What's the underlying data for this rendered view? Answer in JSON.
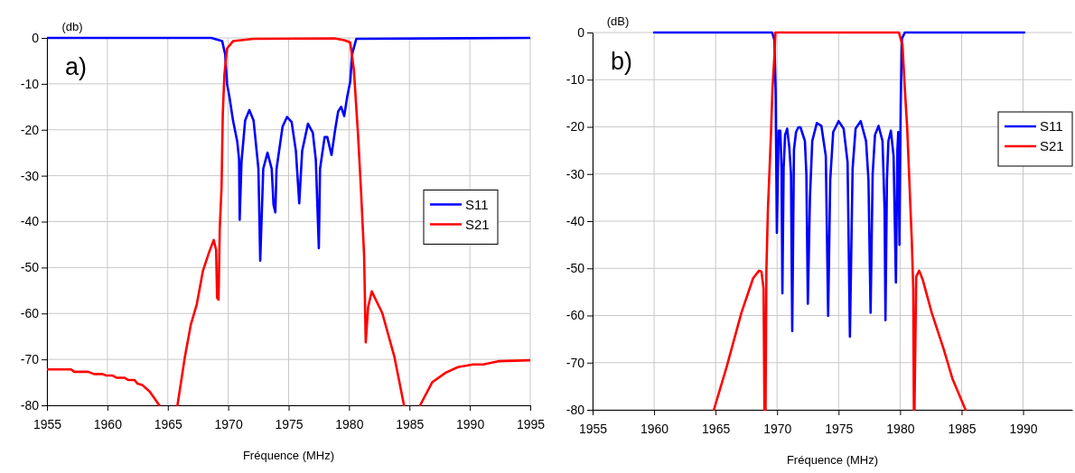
{
  "chart_data": [
    {
      "type": "line",
      "title": "a)",
      "xlabel": "Fréquence (MHz)",
      "ylabel": "(db)",
      "xlim": [
        1955,
        1995
      ],
      "ylim": [
        -80,
        0
      ],
      "xticks": [
        1955,
        1960,
        1965,
        1970,
        1975,
        1980,
        1985,
        1990,
        1995
      ],
      "yticks": [
        -80,
        -70,
        -60,
        -50,
        -40,
        -30,
        -20,
        -10,
        0
      ],
      "grid": true,
      "legend": "right",
      "line_style": "solid",
      "marker": "none",
      "series": [
        {
          "name": "S11",
          "color": "#0000ff",
          "x": [
            1955,
            1968.6,
            1969.5,
            1969.75,
            1969.9,
            1970.1,
            1970.4,
            1970.75,
            1970.9,
            1970.95,
            1971.1,
            1971.4,
            1971.75,
            1972.1,
            1972.5,
            1972.65,
            1972.9,
            1973.25,
            1973.6,
            1973.75,
            1973.9,
            1974.0,
            1974.5,
            1974.87,
            1975.25,
            1975.6,
            1975.88,
            1976.12,
            1976.6,
            1977.0,
            1977.25,
            1977.5,
            1977.6,
            1977.98,
            1978.2,
            1978.55,
            1978.85,
            1979.1,
            1979.35,
            1979.6,
            1979.85,
            1980.1,
            1980.25,
            1980.6,
            1995
          ],
          "values": [
            0,
            0,
            -0.7,
            -3.6,
            -10,
            -12.8,
            -18,
            -22.6,
            -26.5,
            -39.6,
            -27,
            -18,
            -15.7,
            -18,
            -28.5,
            -48.5,
            -28.5,
            -25,
            -28.5,
            -36.3,
            -38,
            -28.5,
            -19.3,
            -17.2,
            -18.3,
            -24.6,
            -36,
            -24.6,
            -18.7,
            -20.6,
            -26.5,
            -45.8,
            -28.5,
            -21.6,
            -21.6,
            -25.5,
            -20,
            -16,
            -15,
            -17,
            -12.8,
            -9.5,
            -3.6,
            -0.2,
            0
          ]
        },
        {
          "name": "S21",
          "color": "#ff0000",
          "x": [
            1955,
            1957,
            1957.25,
            1958.4,
            1958.9,
            1959.6,
            1959.9,
            1960.4,
            1960.75,
            1961.4,
            1961.75,
            1962.25,
            1962.5,
            1962.9,
            1963.5,
            1964.3,
            1965,
            1965.8,
            1966.4,
            1966.9,
            1967.4,
            1967.9,
            1968.4,
            1968.8,
            1969.0,
            1969.08,
            1969.2,
            1969.3,
            1969.45,
            1969.55,
            1969.68,
            1969.9,
            1970.4,
            1972.1,
            1978.8,
            1979.6,
            1980.1,
            1980.4,
            1980.75,
            1981.0,
            1981.25,
            1981.38,
            1981.58,
            1981.88,
            1982.75,
            1983.75,
            1984.55,
            1985.2,
            1985.88,
            1986.88,
            1988,
            1989,
            1990.25,
            1991.1,
            1992.35,
            1995
          ],
          "values": [
            -72.2,
            -72.2,
            -72.7,
            -72.7,
            -73.2,
            -73.2,
            -73.5,
            -73.5,
            -74,
            -74,
            -74.5,
            -74.5,
            -75.3,
            -75.6,
            -77,
            -80,
            null,
            -80,
            -69.7,
            -62.5,
            -58,
            -50.8,
            -46.8,
            -44,
            -46.2,
            -56.6,
            -57,
            -41.6,
            -32.4,
            -16.7,
            -8.2,
            -2.3,
            -0.7,
            -0.2,
            -0.1,
            -0.5,
            -1,
            -6.9,
            -21.3,
            -33.7,
            -47.5,
            -66.3,
            -58.6,
            -55.2,
            -59.9,
            -69.4,
            -80,
            null,
            -80,
            -75,
            -72.9,
            -71.7,
            -71.1,
            -71.1,
            -70.4,
            -70.2
          ]
        }
      ]
    },
    {
      "type": "line",
      "title": "b)",
      "xlabel": "Fréquence (MHz)",
      "ylabel": "(dB)",
      "xlim": [
        1955,
        1994
      ],
      "ylim": [
        -80,
        0
      ],
      "xticks": [
        1955,
        1960,
        1965,
        1970,
        1975,
        1980,
        1985,
        1990
      ],
      "yticks": [
        -80,
        -70,
        -60,
        -50,
        -40,
        -30,
        -20,
        -10,
        0
      ],
      "grid": true,
      "legend": "top right",
      "line_style": "solid",
      "marker": "none",
      "series": [
        {
          "name": "S11",
          "color": "#0000ff",
          "x": [
            1960,
            1969.6,
            1969.78,
            1969.88,
            1969.98,
            1970.12,
            1970.26,
            1970.36,
            1970.43,
            1970.53,
            1970.65,
            1970.82,
            1970.99,
            1971.13,
            1971.23,
            1971.37,
            1971.54,
            1971.73,
            1971.9,
            1972.26,
            1972.38,
            1972.5,
            1972.67,
            1972.86,
            1973.23,
            1973.6,
            1973.96,
            1974.15,
            1974.32,
            1974.56,
            1975,
            1975.41,
            1975.73,
            1975.92,
            1976.14,
            1976.38,
            1976.8,
            1977.23,
            1977.43,
            1977.6,
            1977.77,
            1977.96,
            1978.25,
            1978.57,
            1978.74,
            1978.81,
            1978.93,
            1979.05,
            1979.25,
            1979.47,
            1979.66,
            1979.78,
            1979.85,
            1979.95,
            1980.05,
            1980.15,
            1980.39,
            1990.1
          ],
          "values": [
            0,
            0,
            -1.6,
            -12.1,
            -42.5,
            -20.8,
            -20.8,
            -28.8,
            -55.3,
            -28.8,
            -21.7,
            -20.4,
            -24.3,
            -30,
            -63.3,
            -24.9,
            -21.1,
            -20.1,
            -20.1,
            -23,
            -30,
            -57.5,
            -35.1,
            -23,
            -19.2,
            -19.8,
            -26.2,
            -60.1,
            -31.3,
            -21.1,
            -18.8,
            -20.4,
            -27.5,
            -64.5,
            -28.8,
            -20.4,
            -18.8,
            -23,
            -31.3,
            -59.4,
            -30,
            -21.7,
            -19.8,
            -23,
            -37.7,
            -61,
            -31.3,
            -23,
            -20.8,
            -26.2,
            -53,
            -24.9,
            -21.1,
            -45,
            -15.3,
            -1.3,
            0,
            0
          ]
        },
        {
          "name": "S21",
          "color": "#ff0000",
          "x": [
            1964.86,
            1965.9,
            1967.1,
            1968.05,
            1968.53,
            1968.73,
            1968.9,
            1968.97,
            1969.0,
            1969.06,
            1969.13,
            1969.25,
            1969.5,
            1969.62,
            1969.78,
            1969.86,
            1979.9,
            1980.19,
            1980.39,
            1980.58,
            1980.75,
            1980.95,
            1981.07,
            1981.12,
            1981.15,
            1981.17,
            1981.31,
            1981.55,
            1981.84,
            1982.57,
            1983.54,
            1984.27,
            1985.32
          ],
          "values": [
            -80,
            -70.9,
            -59.4,
            -52.1,
            -50.5,
            -50.7,
            -54.3,
            -80,
            null,
            -80,
            -50.5,
            -37.7,
            -21.7,
            -12.1,
            -5.1,
            0,
            0,
            -2.6,
            -12.1,
            -20.4,
            -31.3,
            -44.1,
            -54.3,
            -80,
            null,
            -80,
            -51.8,
            -50.5,
            -52.4,
            -59.4,
            -67.1,
            -73.5,
            -80
          ]
        }
      ]
    }
  ]
}
